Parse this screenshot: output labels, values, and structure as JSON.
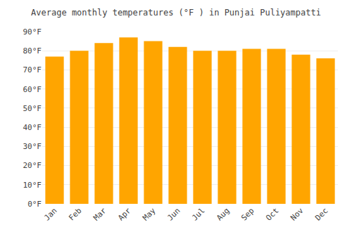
{
  "chart_data": {
    "type": "bar",
    "title": "Average monthly temperatures (°F ) in Punjai Puliyampatti",
    "categories": [
      "Jan",
      "Feb",
      "Mar",
      "Apr",
      "May",
      "Jun",
      "Jul",
      "Aug",
      "Sep",
      "Oct",
      "Nov",
      "Dec"
    ],
    "values": [
      77,
      80,
      84,
      87,
      85,
      82,
      80,
      80,
      81,
      81,
      78,
      76
    ],
    "color": "#FFA500",
    "ylim": [
      0,
      90
    ],
    "yticks": [
      {
        "value": 0,
        "label": "0°F"
      },
      {
        "value": 10,
        "label": "10°F"
      },
      {
        "value": 20,
        "label": "20°F"
      },
      {
        "value": 30,
        "label": "30°F"
      },
      {
        "value": 40,
        "label": "40°F"
      },
      {
        "value": 50,
        "label": "50°F"
      },
      {
        "value": 60,
        "label": "60°F"
      },
      {
        "value": 70,
        "label": "70°F"
      },
      {
        "value": 80,
        "label": "80°F"
      },
      {
        "value": 90,
        "label": "90°F"
      }
    ],
    "grid": true
  }
}
